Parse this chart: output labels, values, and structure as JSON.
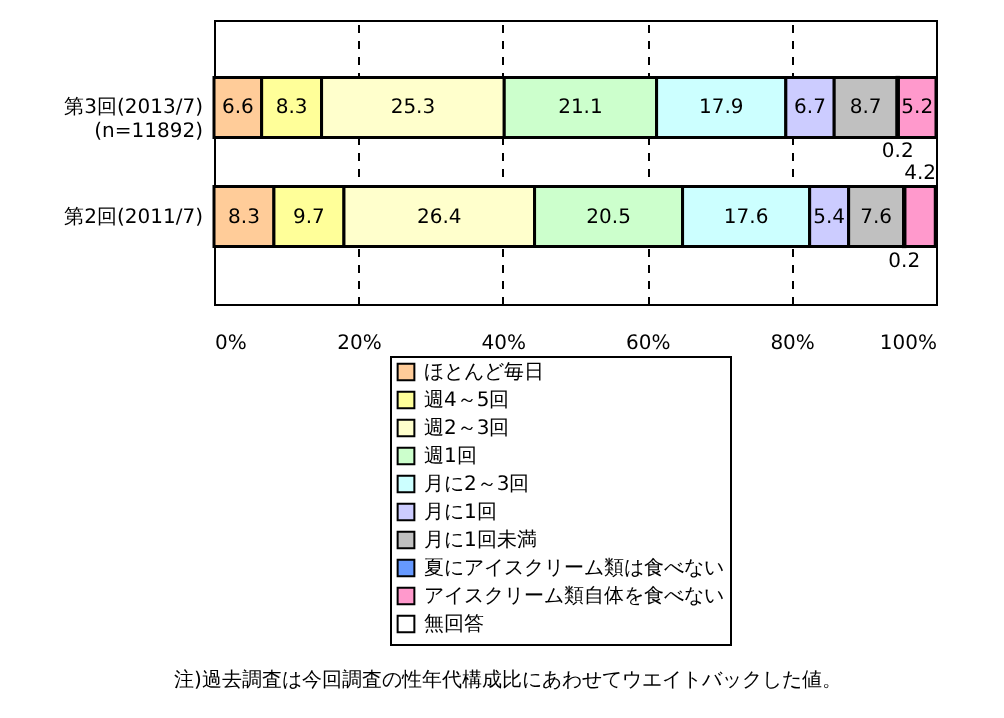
{
  "chart_data": {
    "type": "bar",
    "orientation": "horizontal",
    "stacked": true,
    "categories": [
      "第3回(2013/7)\n(n=11892)",
      "第2回(2011/7)"
    ],
    "series": [
      {
        "name": "ほとんど毎日",
        "color": "#ffcc99",
        "values": [
          6.6,
          8.3
        ]
      },
      {
        "name": "週4～5回",
        "color": "#ffff99",
        "values": [
          8.3,
          9.7
        ]
      },
      {
        "name": "週2～3回",
        "color": "#ffffcc",
        "values": [
          25.3,
          26.4
        ]
      },
      {
        "name": "週1回",
        "color": "#ccffcc",
        "values": [
          21.1,
          20.5
        ]
      },
      {
        "name": "月に2～3回",
        "color": "#ccffff",
        "values": [
          17.9,
          17.6
        ]
      },
      {
        "name": "月に1回",
        "color": "#ccccff",
        "values": [
          6.7,
          5.4
        ]
      },
      {
        "name": "月に1回未満",
        "color": "#c0c0c0",
        "values": [
          8.7,
          7.6
        ]
      },
      {
        "name": "夏にアイスクリーム類は食べない",
        "color": "#6699ff",
        "values": [
          0.2,
          0.2
        ]
      },
      {
        "name": "アイスクリーム類自体を食べない",
        "color": "#ff99cc",
        "values": [
          5.2,
          4.2
        ]
      },
      {
        "name": "無回答",
        "color": "#ffffff",
        "values": [
          null,
          null
        ]
      }
    ],
    "xlim": [
      0,
      100
    ],
    "xticks": [
      {
        "value": 0,
        "label": "0%"
      },
      {
        "value": 20,
        "label": "20%"
      },
      {
        "value": 40,
        "label": "40%"
      },
      {
        "value": 60,
        "label": "60%"
      },
      {
        "value": 80,
        "label": "80%"
      },
      {
        "value": 100,
        "label": "100%"
      }
    ],
    "grid": "x",
    "data_labels": true,
    "legend": "bottom",
    "annotations": [
      "注)過去調査は今回調査の性年代構成比にあわせてウエイトバックした値。"
    ]
  }
}
